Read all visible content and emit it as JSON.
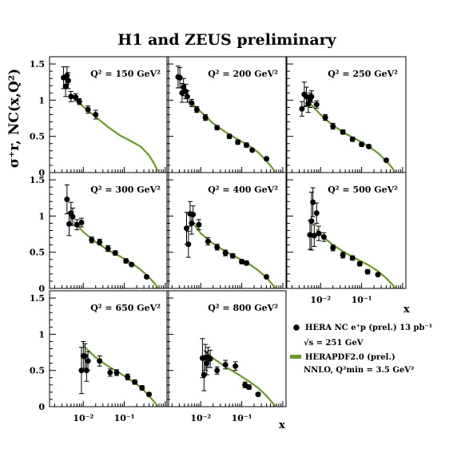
{
  "title": "H1 and ZEUS preliminary",
  "y_label": "σ⁺r, NC(x,Q²)",
  "x_label": "x",
  "legend": {
    "data_label": "HERA NC e⁺p (prel.) 13 pb⁻¹",
    "sqrt_s": "√s = 251 GeV",
    "fit_label": "HERAPDF2.0 (prel.)",
    "fit_note": "NNLO, Q²min = 3.5 GeV²"
  },
  "colors": {
    "fit": "#6b9a2a",
    "data": "#000000"
  },
  "chart_data": [
    {
      "type": "scatter",
      "label": "Q² = 150 GeV²",
      "xscale": "log",
      "ylim": [
        0,
        1.6
      ],
      "yticks": [
        "0",
        "0.5",
        "1",
        "1.5"
      ],
      "xticks": [],
      "points": [
        {
          "x": 0.0033,
          "y": 1.31,
          "err": 0.15
        },
        {
          "x": 0.0037,
          "y": 1.19,
          "err": 0.14
        },
        {
          "x": 0.004,
          "y": 1.34,
          "err": 0.12
        },
        {
          "x": 0.0043,
          "y": 1.27,
          "err": 0.11
        },
        {
          "x": 0.005,
          "y": 1.05,
          "err": 0.07
        },
        {
          "x": 0.0065,
          "y": 1.04,
          "err": 0.05
        },
        {
          "x": 0.008,
          "y": 0.98,
          "err": 0.04
        },
        {
          "x": 0.013,
          "y": 0.87,
          "err": 0.05
        },
        {
          "x": 0.02,
          "y": 0.8,
          "err": 0.06
        }
      ],
      "fit": {
        "x": [
          0.0065,
          0.01,
          0.02,
          0.04,
          0.08,
          0.15,
          0.25,
          0.4,
          0.55,
          0.65
        ],
        "y": [
          1.01,
          0.91,
          0.77,
          0.63,
          0.51,
          0.43,
          0.36,
          0.24,
          0.11,
          0.02
        ]
      }
    },
    {
      "type": "scatter",
      "label": "Q² = 200 GeV²",
      "xscale": "log",
      "ylim": [
        0,
        1.6
      ],
      "yticks": [],
      "xticks": [],
      "points": [
        {
          "x": 0.0028,
          "y": 1.32,
          "err": 0.15
        },
        {
          "x": 0.0031,
          "y": 1.31,
          "err": 0.14
        },
        {
          "x": 0.0035,
          "y": 1.1,
          "err": 0.13
        },
        {
          "x": 0.0038,
          "y": 1.18,
          "err": 0.12
        },
        {
          "x": 0.0043,
          "y": 1.12,
          "err": 0.1
        },
        {
          "x": 0.0047,
          "y": 1.05,
          "err": 0.08
        },
        {
          "x": 0.006,
          "y": 0.96,
          "err": 0.05
        },
        {
          "x": 0.008,
          "y": 0.87,
          "err": 0.04
        },
        {
          "x": 0.013,
          "y": 0.76,
          "err": 0.04
        },
        {
          "x": 0.025,
          "y": 0.62,
          "err": 0.03
        },
        {
          "x": 0.05,
          "y": 0.5,
          "err": 0.03
        },
        {
          "x": 0.08,
          "y": 0.42,
          "err": 0.03
        },
        {
          "x": 0.13,
          "y": 0.38,
          "err": 0.03
        },
        {
          "x": 0.18,
          "y": 0.31,
          "err": 0.02
        },
        {
          "x": 0.4,
          "y": 0.19,
          "err": 0.02
        }
      ],
      "fit": {
        "x": [
          0.005,
          0.01,
          0.02,
          0.04,
          0.08,
          0.15,
          0.25,
          0.4,
          0.55,
          0.65
        ],
        "y": [
          1.0,
          0.84,
          0.68,
          0.56,
          0.46,
          0.37,
          0.28,
          0.16,
          0.07,
          0.01
        ]
      }
    },
    {
      "type": "scatter",
      "label": "Q² = 250 GeV²",
      "xscale": "log",
      "ylim": [
        0,
        1.6
      ],
      "yticks": [],
      "xticks": [],
      "points": [
        {
          "x": 0.0035,
          "y": 0.88,
          "err": 0.1
        },
        {
          "x": 0.004,
          "y": 1.08,
          "err": 0.17
        },
        {
          "x": 0.0045,
          "y": 1.05,
          "err": 0.13
        },
        {
          "x": 0.005,
          "y": 0.95,
          "err": 0.12
        },
        {
          "x": 0.0055,
          "y": 1.0,
          "err": 0.1
        },
        {
          "x": 0.006,
          "y": 1.05,
          "err": 0.08
        },
        {
          "x": 0.008,
          "y": 0.94,
          "err": 0.05
        },
        {
          "x": 0.013,
          "y": 0.76,
          "err": 0.04
        },
        {
          "x": 0.02,
          "y": 0.64,
          "err": 0.04
        },
        {
          "x": 0.035,
          "y": 0.56,
          "err": 0.03
        },
        {
          "x": 0.06,
          "y": 0.46,
          "err": 0.03
        },
        {
          "x": 0.1,
          "y": 0.39,
          "err": 0.03
        },
        {
          "x": 0.15,
          "y": 0.36,
          "err": 0.02
        },
        {
          "x": 0.4,
          "y": 0.17,
          "err": 0.02
        }
      ],
      "fit": {
        "x": [
          0.005,
          0.01,
          0.02,
          0.04,
          0.08,
          0.15,
          0.25,
          0.4,
          0.55,
          0.65
        ],
        "y": [
          0.98,
          0.8,
          0.65,
          0.54,
          0.45,
          0.36,
          0.27,
          0.16,
          0.07,
          0.01
        ]
      }
    },
    {
      "type": "scatter",
      "label": "Q² = 300 GeV²",
      "xscale": "log",
      "ylim": [
        0,
        1.6
      ],
      "yticks": [
        "0",
        "0.5",
        "1",
        "1.5"
      ],
      "xticks": [],
      "points": [
        {
          "x": 0.004,
          "y": 1.23,
          "err": 0.2
        },
        {
          "x": 0.0045,
          "y": 0.89,
          "err": 0.16
        },
        {
          "x": 0.005,
          "y": 1.04,
          "err": 0.15
        },
        {
          "x": 0.0055,
          "y": 0.99,
          "err": 0.12
        },
        {
          "x": 0.007,
          "y": 0.88,
          "err": 0.07
        },
        {
          "x": 0.009,
          "y": 0.91,
          "err": 0.06
        },
        {
          "x": 0.016,
          "y": 0.67,
          "err": 0.04
        },
        {
          "x": 0.025,
          "y": 0.64,
          "err": 0.04
        },
        {
          "x": 0.04,
          "y": 0.55,
          "err": 0.04
        },
        {
          "x": 0.06,
          "y": 0.49,
          "err": 0.03
        },
        {
          "x": 0.11,
          "y": 0.38,
          "err": 0.03
        },
        {
          "x": 0.15,
          "y": 0.33,
          "err": 0.02
        },
        {
          "x": 0.35,
          "y": 0.16,
          "err": 0.02
        }
      ],
      "fit": {
        "x": [
          0.006,
          0.01,
          0.02,
          0.04,
          0.08,
          0.15,
          0.25,
          0.4,
          0.55,
          0.65
        ],
        "y": [
          0.92,
          0.78,
          0.64,
          0.53,
          0.44,
          0.35,
          0.26,
          0.15,
          0.07,
          0.01
        ]
      }
    },
    {
      "type": "scatter",
      "label": "Q² = 400 GeV²",
      "xscale": "log",
      "ylim": [
        0,
        1.6
      ],
      "yticks": [],
      "xticks": [],
      "points": [
        {
          "x": 0.0045,
          "y": 0.83,
          "err": 0.22
        },
        {
          "x": 0.005,
          "y": 0.61,
          "err": 0.18
        },
        {
          "x": 0.0055,
          "y": 1.03,
          "err": 0.17
        },
        {
          "x": 0.006,
          "y": 0.9,
          "err": 0.15
        },
        {
          "x": 0.0065,
          "y": 1.02,
          "err": 0.12
        },
        {
          "x": 0.009,
          "y": 0.88,
          "err": 0.07
        },
        {
          "x": 0.015,
          "y": 0.65,
          "err": 0.05
        },
        {
          "x": 0.025,
          "y": 0.57,
          "err": 0.04
        },
        {
          "x": 0.04,
          "y": 0.49,
          "err": 0.04
        },
        {
          "x": 0.06,
          "y": 0.45,
          "err": 0.03
        },
        {
          "x": 0.1,
          "y": 0.37,
          "err": 0.03
        },
        {
          "x": 0.13,
          "y": 0.35,
          "err": 0.03
        },
        {
          "x": 0.4,
          "y": 0.16,
          "err": 0.02
        }
      ],
      "fit": {
        "x": [
          0.007,
          0.01,
          0.02,
          0.04,
          0.08,
          0.15,
          0.25,
          0.4,
          0.55,
          0.65
        ],
        "y": [
          0.88,
          0.76,
          0.62,
          0.51,
          0.42,
          0.34,
          0.25,
          0.15,
          0.06,
          0.01
        ]
      }
    },
    {
      "type": "scatter",
      "label": "Q² = 500 GeV²",
      "xscale": "log",
      "ylim": [
        0,
        1.6
      ],
      "yticks": [],
      "xticks": [
        "10⁻²",
        "10⁻¹"
      ],
      "points": [
        {
          "x": 0.0055,
          "y": 0.74,
          "err": 0.2
        },
        {
          "x": 0.006,
          "y": 0.93,
          "err": 0.4
        },
        {
          "x": 0.0065,
          "y": 1.19,
          "err": 0.2
        },
        {
          "x": 0.007,
          "y": 0.73,
          "err": 0.15
        },
        {
          "x": 0.008,
          "y": 1.04,
          "err": 0.14
        },
        {
          "x": 0.009,
          "y": 0.76,
          "err": 0.1
        },
        {
          "x": 0.012,
          "y": 0.71,
          "err": 0.06
        },
        {
          "x": 0.02,
          "y": 0.56,
          "err": 0.04
        },
        {
          "x": 0.035,
          "y": 0.46,
          "err": 0.04
        },
        {
          "x": 0.06,
          "y": 0.42,
          "err": 0.03
        },
        {
          "x": 0.09,
          "y": 0.34,
          "err": 0.03
        },
        {
          "x": 0.14,
          "y": 0.23,
          "err": 0.03
        },
        {
          "x": 0.25,
          "y": 0.19,
          "err": 0.02
        }
      ],
      "fit": {
        "x": [
          0.008,
          0.01,
          0.02,
          0.04,
          0.08,
          0.15,
          0.25,
          0.4,
          0.55,
          0.65
        ],
        "y": [
          0.82,
          0.74,
          0.6,
          0.49,
          0.4,
          0.32,
          0.24,
          0.14,
          0.06,
          0.01
        ]
      }
    },
    {
      "type": "scatter",
      "label": "Q² = 650 GeV²",
      "xscale": "log",
      "ylim": [
        0,
        1.6
      ],
      "yticks": [
        "0",
        "0.5",
        "1",
        "1.5"
      ],
      "xticks": [
        "10⁻²",
        "10⁻¹"
      ],
      "points": [
        {
          "x": 0.009,
          "y": 0.5,
          "err": 0.32
        },
        {
          "x": 0.01,
          "y": 0.7,
          "err": 0.2
        },
        {
          "x": 0.011,
          "y": 0.7,
          "err": 0.17
        },
        {
          "x": 0.012,
          "y": 0.5,
          "err": 0.15
        },
        {
          "x": 0.013,
          "y": 0.63,
          "err": 0.13
        },
        {
          "x": 0.025,
          "y": 0.63,
          "err": 0.07
        },
        {
          "x": 0.045,
          "y": 0.47,
          "err": 0.05
        },
        {
          "x": 0.065,
          "y": 0.47,
          "err": 0.04
        },
        {
          "x": 0.12,
          "y": 0.41,
          "err": 0.04
        },
        {
          "x": 0.18,
          "y": 0.34,
          "err": 0.03
        },
        {
          "x": 0.27,
          "y": 0.26,
          "err": 0.03
        },
        {
          "x": 0.4,
          "y": 0.17,
          "err": 0.02
        }
      ],
      "fit": {
        "x": [
          0.01,
          0.02,
          0.04,
          0.08,
          0.15,
          0.25,
          0.4,
          0.55,
          0.65
        ],
        "y": [
          0.84,
          0.68,
          0.56,
          0.46,
          0.36,
          0.27,
          0.15,
          0.06,
          0.01
        ]
      }
    },
    {
      "type": "scatter",
      "label": "Q² = 800 GeV²",
      "xscale": "log",
      "ylim": [
        0,
        1.6
      ],
      "yticks": [],
      "xticks": [
        "10⁻²",
        "10⁻¹"
      ],
      "points": [
        {
          "x": 0.011,
          "y": 0.67,
          "err": 0.27
        },
        {
          "x": 0.012,
          "y": 0.44,
          "err": 0.22
        },
        {
          "x": 0.013,
          "y": 0.68,
          "err": 0.18
        },
        {
          "x": 0.014,
          "y": 0.6,
          "err": 0.16
        },
        {
          "x": 0.015,
          "y": 0.68,
          "err": 0.14
        },
        {
          "x": 0.017,
          "y": 0.66,
          "err": 0.12
        },
        {
          "x": 0.025,
          "y": 0.5,
          "err": 0.05
        },
        {
          "x": 0.04,
          "y": 0.58,
          "err": 0.06
        },
        {
          "x": 0.07,
          "y": 0.56,
          "err": 0.06
        },
        {
          "x": 0.12,
          "y": 0.3,
          "err": 0.04
        },
        {
          "x": 0.15,
          "y": 0.27,
          "err": 0.03
        },
        {
          "x": 0.25,
          "y": 0.17,
          "err": 0.02
        }
      ],
      "fit": {
        "x": [
          0.012,
          0.02,
          0.04,
          0.08,
          0.15,
          0.25,
          0.4,
          0.55,
          0.65
        ],
        "y": [
          0.78,
          0.67,
          0.55,
          0.45,
          0.35,
          0.26,
          0.15,
          0.06,
          0.01
        ]
      }
    }
  ]
}
